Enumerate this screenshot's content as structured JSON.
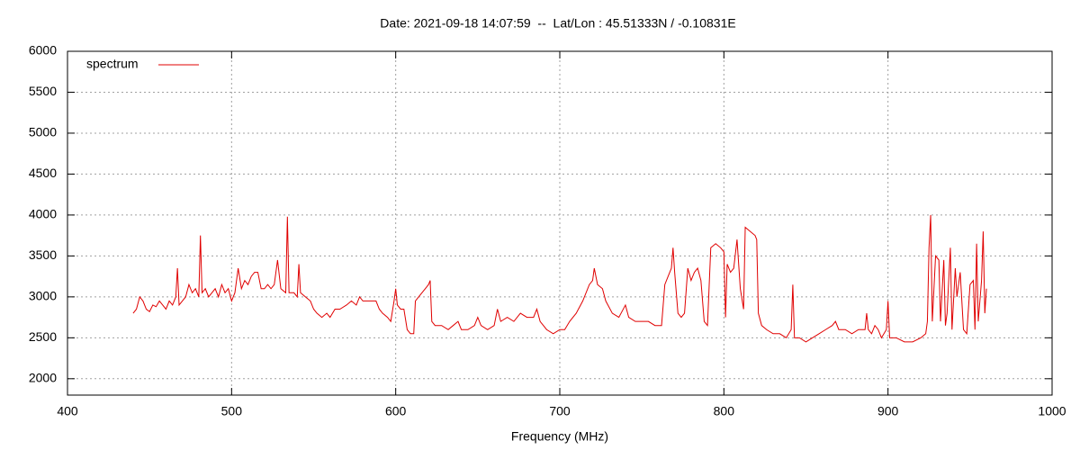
{
  "chart_data": {
    "type": "line",
    "title": "Date: 2021-09-18 14:07:59  --  Lat/Lon : 45.51333N / -0.10831E",
    "x_label": "Frequency (MHz)",
    "xlim": [
      400,
      1000
    ],
    "xticks": [
      400,
      500,
      600,
      700,
      800,
      900,
      1000
    ],
    "ylim": [
      1800,
      6000
    ],
    "yticks": [
      2000,
      2500,
      3000,
      3500,
      4000,
      4500,
      5000,
      5500,
      6000
    ],
    "grid": true,
    "legend": "top-left",
    "x": [
      440,
      442,
      444,
      446,
      448,
      450,
      452,
      454,
      456,
      458,
      460,
      462,
      464,
      466,
      467,
      468,
      470,
      472,
      474,
      476,
      478,
      480,
      481,
      482,
      484,
      486,
      488,
      490,
      492,
      494,
      496,
      498,
      500,
      502,
      504,
      506,
      508,
      510,
      512,
      514,
      516,
      518,
      520,
      522,
      524,
      526,
      528,
      530,
      533,
      534,
      535,
      538,
      540,
      541,
      542,
      545,
      548,
      550,
      552,
      555,
      558,
      560,
      563,
      566,
      570,
      573,
      576,
      578,
      580,
      584,
      588,
      590,
      592,
      595,
      597,
      599,
      600,
      601,
      603,
      605,
      607,
      609,
      611,
      612,
      614,
      616,
      618,
      620,
      621,
      622,
      624,
      628,
      632,
      635,
      638,
      640,
      644,
      648,
      650,
      652,
      656,
      660,
      662,
      664,
      668,
      672,
      676,
      680,
      684,
      686,
      688,
      692,
      696,
      700,
      703,
      706,
      710,
      714,
      718,
      720,
      721,
      723,
      726,
      728,
      732,
      736,
      740,
      742,
      746,
      750,
      754,
      758,
      762,
      764,
      766,
      768,
      769,
      770,
      772,
      774,
      776,
      778,
      780,
      782,
      784,
      786,
      788,
      790,
      792,
      795,
      798,
      800,
      801,
      802,
      804,
      806,
      808,
      810,
      812,
      813,
      816,
      819,
      820,
      821,
      823,
      826,
      830,
      834,
      838,
      841,
      842,
      843,
      846,
      850,
      854,
      858,
      862,
      866,
      868,
      870,
      874,
      878,
      882,
      886,
      887,
      888,
      890,
      892,
      894,
      896,
      899,
      900,
      901,
      905,
      910,
      915,
      920,
      923,
      924,
      925,
      926,
      927,
      929,
      931,
      932,
      934,
      935,
      936,
      938,
      939,
      941,
      942,
      944,
      946,
      948,
      950,
      952,
      953,
      954,
      955,
      957,
      958,
      959,
      960
    ],
    "series": [
      {
        "name": "spectrum",
        "color": "#e00000",
        "values": [
          2800,
          2850,
          3000,
          2950,
          2850,
          2820,
          2900,
          2880,
          2950,
          2900,
          2850,
          2950,
          2900,
          3000,
          3350,
          2900,
          2950,
          3000,
          3150,
          3050,
          3100,
          3000,
          3750,
          3050,
          3100,
          3000,
          3050,
          3100,
          3000,
          3150,
          3050,
          3100,
          2950,
          3050,
          3350,
          3100,
          3200,
          3150,
          3250,
          3300,
          3300,
          3100,
          3100,
          3150,
          3100,
          3150,
          3450,
          3100,
          3050,
          3980,
          3050,
          3050,
          3000,
          3400,
          3050,
          3000,
          2950,
          2850,
          2800,
          2750,
          2800,
          2750,
          2850,
          2850,
          2900,
          2950,
          2900,
          3000,
          2950,
          2950,
          2950,
          2850,
          2800,
          2750,
          2700,
          2950,
          3100,
          2900,
          2850,
          2850,
          2600,
          2550,
          2550,
          2950,
          3000,
          3050,
          3100,
          3150,
          3200,
          2700,
          2650,
          2650,
          2600,
          2650,
          2700,
          2600,
          2600,
          2650,
          2750,
          2650,
          2600,
          2650,
          2850,
          2700,
          2750,
          2700,
          2800,
          2750,
          2750,
          2850,
          2700,
          2600,
          2550,
          2600,
          2600,
          2700,
          2800,
          2950,
          3150,
          3200,
          3350,
          3150,
          3100,
          2950,
          2800,
          2750,
          2900,
          2750,
          2700,
          2700,
          2700,
          2650,
          2650,
          3150,
          3250,
          3350,
          3600,
          3300,
          2800,
          2750,
          2800,
          3350,
          3200,
          3300,
          3350,
          3200,
          2700,
          2650,
          3600,
          3650,
          3600,
          3550,
          2750,
          3400,
          3300,
          3350,
          3700,
          3100,
          2850,
          3850,
          3800,
          3750,
          3700,
          2800,
          2650,
          2600,
          2550,
          2550,
          2500,
          2600,
          3150,
          2500,
          2500,
          2450,
          2500,
          2550,
          2600,
          2650,
          2700,
          2600,
          2600,
          2550,
          2600,
          2600,
          2800,
          2600,
          2550,
          2650,
          2600,
          2500,
          2600,
          2950,
          2500,
          2500,
          2450,
          2450,
          2500,
          2550,
          2700,
          3600,
          4000,
          2700,
          3500,
          3450,
          2700,
          3450,
          2650,
          2800,
          3600,
          2600,
          3350,
          3000,
          3300,
          2600,
          2550,
          3150,
          3200,
          2600,
          3650,
          2700,
          3200,
          3800,
          2800,
          3100
        ]
      }
    ]
  }
}
